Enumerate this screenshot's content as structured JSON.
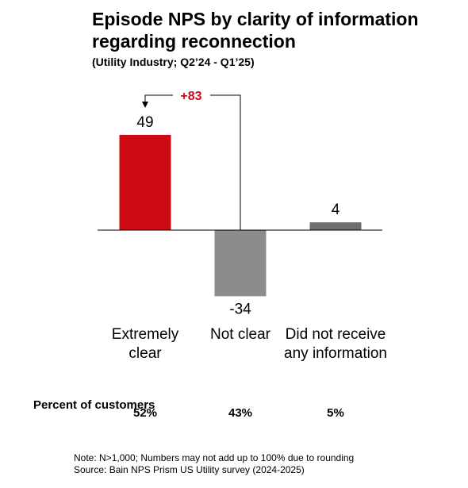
{
  "header": {
    "title": "Episode NPS by clarity of information regarding reconnection",
    "subtitle": "(Utility Industry; Q2’24 - Q1’25)"
  },
  "chart_data": {
    "type": "bar",
    "categories": [
      "Extremely clear",
      "Not clear",
      "Did not receive any information"
    ],
    "values": [
      49,
      -34,
      4
    ],
    "colors": [
      "#cc0a14",
      "#8c8c8c",
      "#6e6e6e"
    ],
    "ylim": [
      -34,
      49
    ],
    "difference_annotation": {
      "label": "+83",
      "color": "#cc0a14",
      "from": "Not clear",
      "to": "Extremely clear"
    },
    "row_label": "Percent of customers",
    "percent_of_customers": [
      "52%",
      "43%",
      "5%"
    ]
  },
  "footer": {
    "note": "Note: N>1,000; Numbers may not add up to 100% due to rounding",
    "source": "Source: Bain NPS Prism US Utility survey (2024-2025)"
  }
}
